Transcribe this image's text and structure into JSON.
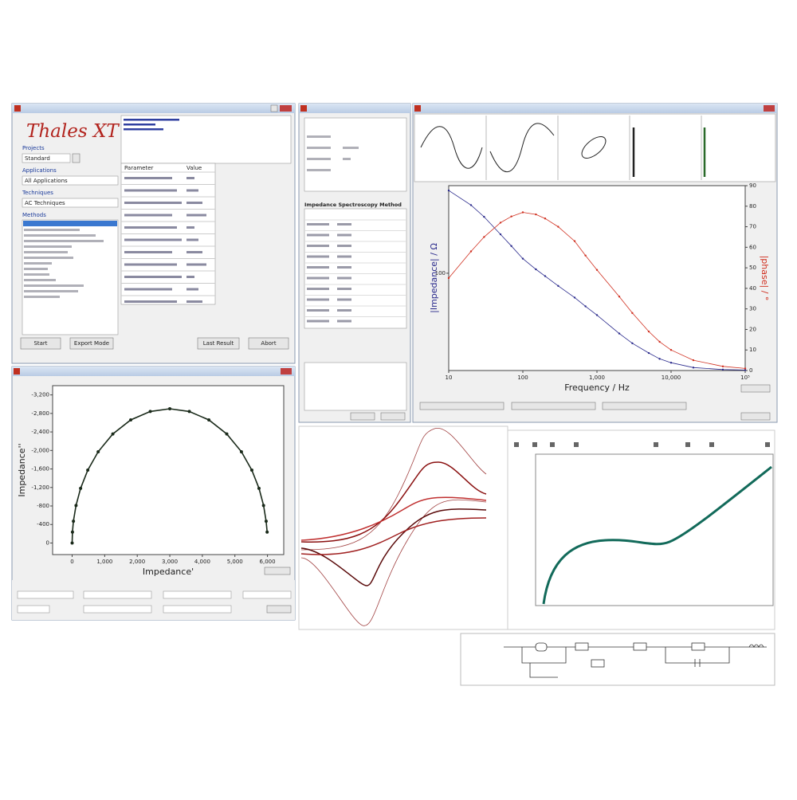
{
  "window_main": {
    "logo": "Thales XT",
    "projects_label": "Projects",
    "project": "Standard",
    "applications_label": "Applications",
    "application": "All Applications",
    "techniques_label": "Techniques",
    "technique": "AC Techniques",
    "methods_label": "Methods",
    "table_header": [
      "Parameter",
      "Value"
    ],
    "buttons": [
      "Start",
      "Export Mode",
      "Last Result",
      "Abort"
    ]
  },
  "window_method": {
    "heading": "Impedance Spectroscopy Method"
  },
  "chart_data": [
    {
      "type": "line",
      "x_label": "Impedance'",
      "y_label": "Impedance''",
      "x": [
        0,
        10,
        40,
        120,
        260,
        480,
        800,
        1250,
        1800,
        2400,
        3000,
        3600,
        4200,
        4750,
        5200,
        5520,
        5740,
        5880,
        5960,
        5990
      ],
      "series": [
        {
          "color": "#1a2a1a",
          "values": [
            0,
            -237,
            -472,
            -812,
            -1181,
            -1574,
            -1972,
            -2356,
            -2659,
            -2842,
            -2900,
            -2842,
            -2659,
            -2356,
            -1972,
            -1574,
            -1181,
            -812,
            -472,
            -237
          ]
        }
      ],
      "xlim": [
        -600,
        6500
      ],
      "ylim": [
        250,
        -3400
      ],
      "xticks": [
        0,
        {
          "value": 1000,
          "label": "1,000"
        },
        {
          "value": 2000,
          "label": "2,000"
        },
        {
          "value": 3000,
          "label": "3,000"
        },
        {
          "value": 4000,
          "label": "4,000"
        },
        {
          "value": 5000,
          "label": "5,000"
        },
        {
          "value": 6000,
          "label": "6,000"
        }
      ],
      "yticks": [
        0,
        {
          "value": -400,
          "label": "-400"
        },
        {
          "value": -800,
          "label": "-800"
        },
        {
          "value": -1200,
          "label": "-1,200"
        },
        {
          "value": -1600,
          "label": "-1,600"
        },
        {
          "value": -2000,
          "label": "-2,000"
        },
        {
          "value": -2400,
          "label": "-2,400"
        },
        {
          "value": -2800,
          "label": "-2,800"
        },
        {
          "value": -3200,
          "label": "-3,200"
        }
      ]
    },
    {
      "type": "line",
      "x_label": "Frequency / Hz",
      "y_label": "|Impedance| / Ω",
      "y2_label": "|phase| / °",
      "log_x": true,
      "x": [
        10,
        20,
        30,
        50,
        70,
        100,
        150,
        200,
        300,
        500,
        700,
        1000,
        2000,
        3000,
        5000,
        7000,
        10000,
        20000,
        50000,
        100000
      ],
      "series": [
        {
          "color": "#2a2a8c",
          "values": [
            185,
            170,
            158,
            140,
            128,
            115,
            104,
            97,
            87,
            75,
            66,
            57,
            38,
            28,
            18,
            12,
            8,
            3,
            1,
            0.5
          ]
        },
        {
          "color": "#d03020",
          "axis": "y2",
          "values": [
            45,
            58,
            65,
            72,
            75,
            77,
            76,
            74,
            70,
            63,
            56,
            49,
            36,
            28,
            19,
            14,
            10,
            5,
            2,
            1
          ]
        }
      ],
      "xlim": [
        10,
        100000
      ],
      "ylim": [
        0,
        190
      ],
      "y2lim": [
        0,
        90
      ],
      "xticks": [
        10,
        100,
        {
          "value": 1000,
          "label": "1,000"
        },
        {
          "value": 10000,
          "label": "10,000"
        },
        {
          "value": 100000,
          "label": "10⁵"
        }
      ],
      "yticks": [
        100
      ],
      "y2ticks": [
        0,
        10,
        20,
        30,
        40,
        50,
        60,
        70,
        80,
        90
      ]
    }
  ]
}
